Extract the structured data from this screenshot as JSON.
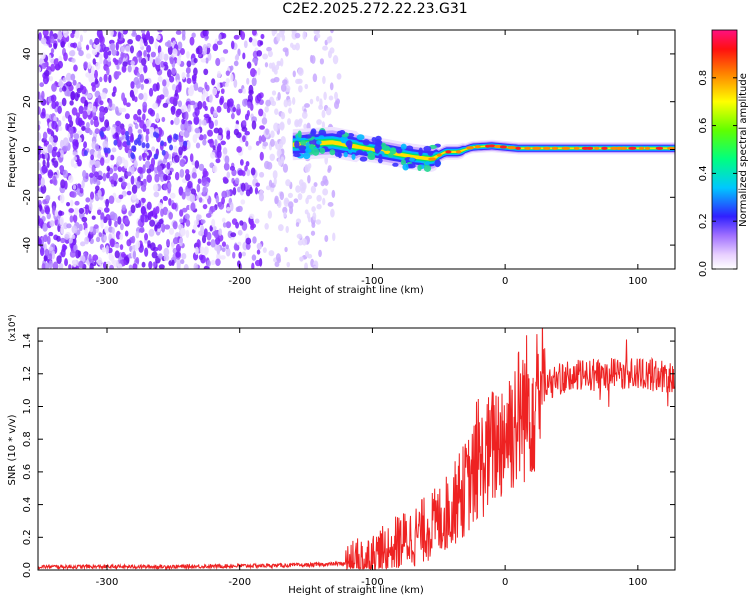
{
  "title": "C2E2.2025.272.22.23.G31",
  "chart_data": [
    {
      "type": "heatmap",
      "xlabel": "Height of straight line (km)",
      "ylabel": "Frequency (Hz)",
      "xlim": [
        -352,
        128
      ],
      "ylim": [
        -50,
        50
      ],
      "xticks": [
        -300,
        -200,
        -100,
        0,
        100
      ],
      "yticks": [
        -40,
        -20,
        0,
        20,
        40
      ],
      "colorbar_label": "Normalized spectral amplitude",
      "colorbar_range": [
        0,
        1
      ],
      "colorbar_ticks": [
        "0.0",
        "0.2",
        "0.4",
        "0.6",
        "0.8"
      ],
      "noise_region_x": [
        -352,
        -125
      ],
      "signal_start_x": -160,
      "signal_trace": [
        {
          "x": -160,
          "f": 2
        },
        {
          "x": -130,
          "f": 3
        },
        {
          "x": -110,
          "f": 1
        },
        {
          "x": -90,
          "f": -1
        },
        {
          "x": -70,
          "f": -3
        },
        {
          "x": -55,
          "f": -4
        },
        {
          "x": -45,
          "f": -1
        },
        {
          "x": -35,
          "f": -1
        },
        {
          "x": -25,
          "f": 1
        },
        {
          "x": -10,
          "f": 1.5
        },
        {
          "x": 10,
          "f": 0.5
        },
        {
          "x": 40,
          "f": 0.5
        },
        {
          "x": 80,
          "f": 0.5
        },
        {
          "x": 128,
          "f": 0.5
        }
      ],
      "colors": {
        "noise": "#7a1fff",
        "trace_core": "#ff2020",
        "trace_outer": "#3a30ff"
      }
    },
    {
      "type": "line",
      "xlabel": "Height of straight line (km)",
      "ylabel": "SNR (10 * v/v)",
      "yscale_label": "(x10⁴)",
      "xlim": [
        -352,
        128
      ],
      "ylim": [
        0,
        1.48
      ],
      "xticks": [
        -300,
        -200,
        -100,
        0,
        100
      ],
      "yticks": [
        "0.0",
        "0.2",
        "0.4",
        "0.6",
        "0.8",
        "1.0",
        "1.2",
        "1.4"
      ],
      "color": "#ee2222",
      "x": [
        -352,
        -250,
        -150,
        -120,
        -110,
        -100,
        -90,
        -80,
        -70,
        -60,
        -50,
        -40,
        -30,
        -20,
        -10,
        0,
        10,
        20,
        30,
        40,
        60,
        80,
        100,
        128
      ],
      "y": [
        0.02,
        0.02,
        0.03,
        0.04,
        0.06,
        0.08,
        0.12,
        0.17,
        0.2,
        0.25,
        0.3,
        0.38,
        0.5,
        0.62,
        0.74,
        0.84,
        0.94,
        1.04,
        1.12,
        1.17,
        1.19,
        1.2,
        1.2,
        1.18
      ]
    }
  ]
}
